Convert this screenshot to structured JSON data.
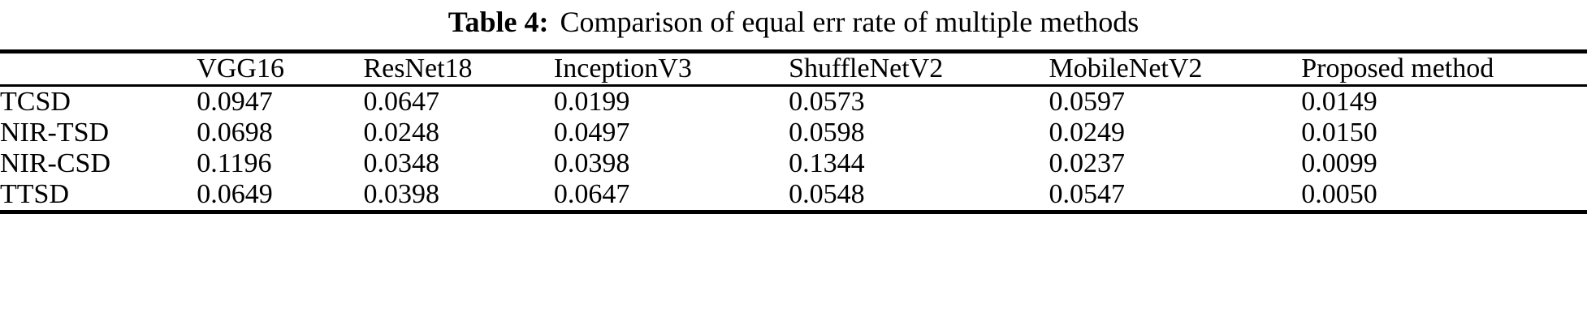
{
  "title": {
    "label": "Table 4:",
    "text": "Comparison of equal err rate of multiple methods"
  },
  "table": {
    "columns": [
      "VGG16",
      "ResNet18",
      "InceptionV3",
      "ShuffleNetV2",
      "MobileNetV2",
      "Proposed method"
    ],
    "rows": [
      {
        "label": "TCSD",
        "values": [
          "0.0947",
          "0.0647",
          "0.0199",
          "0.0573",
          "0.0597",
          "0.0149"
        ]
      },
      {
        "label": "NIR-TSD",
        "values": [
          "0.0698",
          "0.0248",
          "0.0497",
          "0.0598",
          "0.0249",
          "0.0150"
        ]
      },
      {
        "label": "NIR-CSD",
        "values": [
          "0.1196",
          "0.0348",
          "0.0398",
          "0.1344",
          "0.0237",
          "0.0099"
        ]
      },
      {
        "label": "TTSD",
        "values": [
          "0.0649",
          "0.0398",
          "0.0647",
          "0.0548",
          "0.0547",
          "0.0050"
        ]
      }
    ]
  },
  "colors": {
    "text": "#000000",
    "background": "#ffffff",
    "rule": "#000000"
  }
}
